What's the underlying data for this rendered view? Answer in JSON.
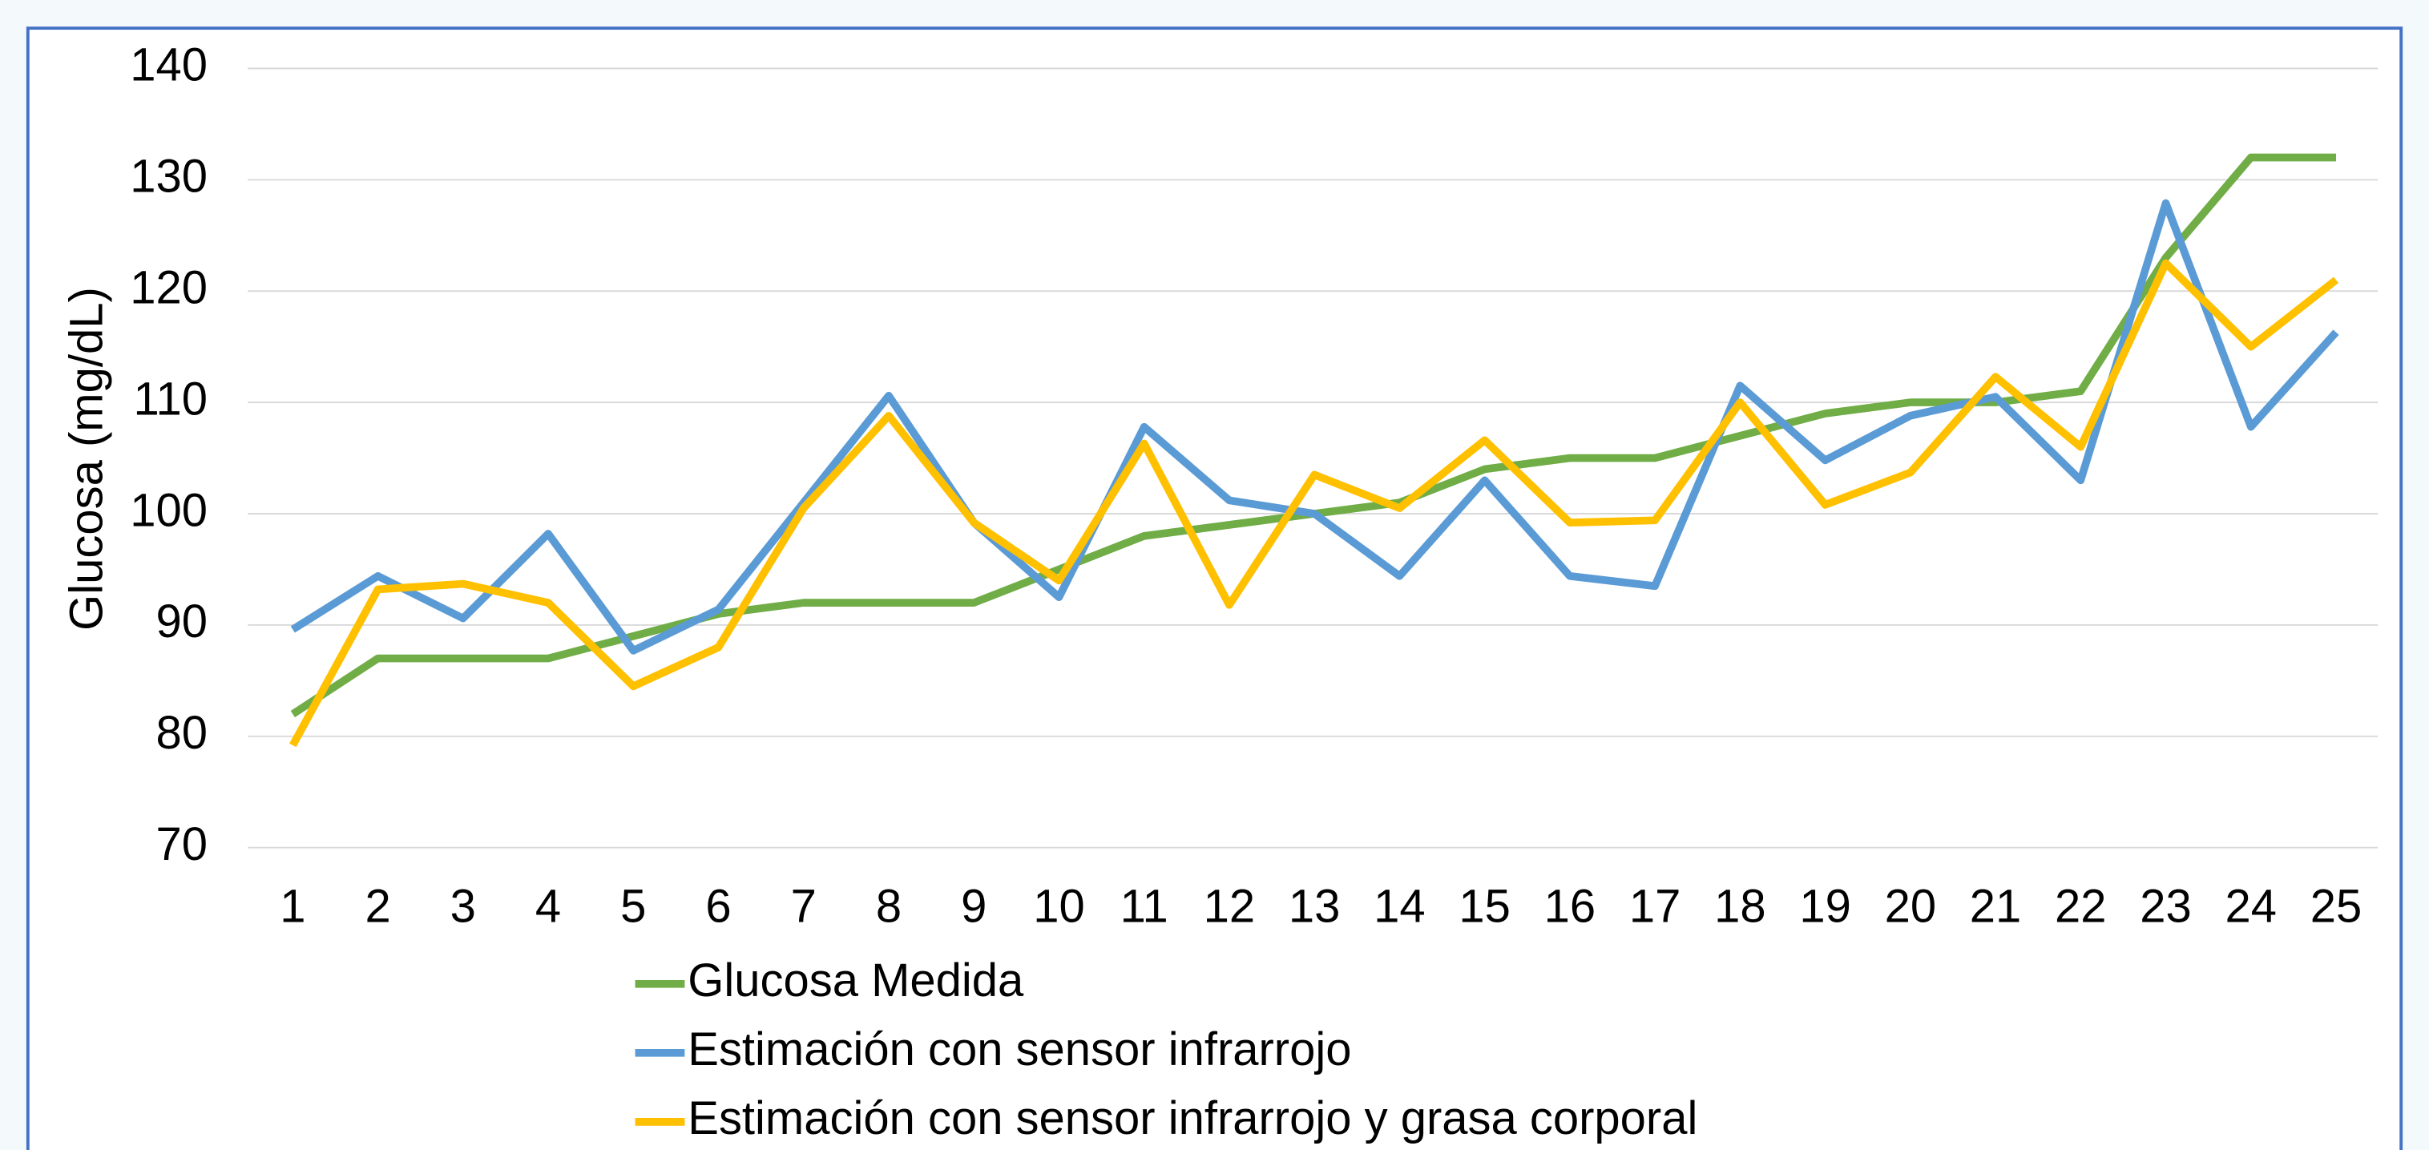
{
  "chart_data": {
    "type": "line",
    "y_label": "Glucosa (mg/dL)",
    "categories": [
      "1",
      "2",
      "3",
      "4",
      "5",
      "6",
      "7",
      "8",
      "9",
      "10",
      "11",
      "12",
      "13",
      "14",
      "15",
      "16",
      "17",
      "18",
      "19",
      "20",
      "21",
      "22",
      "23",
      "24",
      "25"
    ],
    "series": [
      {
        "name": "Glucosa Medida",
        "color": "#70ad47",
        "values": [
          82,
          87,
          87,
          87,
          89,
          91,
          92,
          92,
          92,
          95,
          98,
          99,
          100,
          101,
          104,
          105,
          105,
          107,
          109,
          110,
          110,
          111,
          123,
          132,
          132
        ]
      },
      {
        "name": "Estimación con sensor infrarrojo",
        "color": "#5b9bd5",
        "values": [
          89.6,
          94.4,
          90.6,
          98.2,
          87.7,
          91.4,
          101,
          110.6,
          99.2,
          92.5,
          107.8,
          101.2,
          100,
          94.4,
          103,
          94.4,
          93.5,
          111.5,
          104.8,
          108.8,
          110.5,
          103,
          127.9,
          107.8,
          116.3
        ]
      },
      {
        "name": "Estimación con sensor infrarrojo y grasa corporal",
        "color": "#ffc000",
        "values": [
          79.2,
          93.2,
          93.7,
          92,
          84.5,
          88,
          100.5,
          108.8,
          99.2,
          94,
          106.3,
          91.8,
          103.5,
          100.5,
          106.6,
          99.2,
          99.4,
          110,
          100.8,
          103.7,
          112.3,
          106,
          122.5,
          115,
          121
        ]
      }
    ],
    "ylim": [
      70,
      140
    ],
    "yticks": [
      70,
      80,
      90,
      100,
      110,
      120,
      130,
      140
    ],
    "grid": true,
    "legend": "bottom"
  }
}
